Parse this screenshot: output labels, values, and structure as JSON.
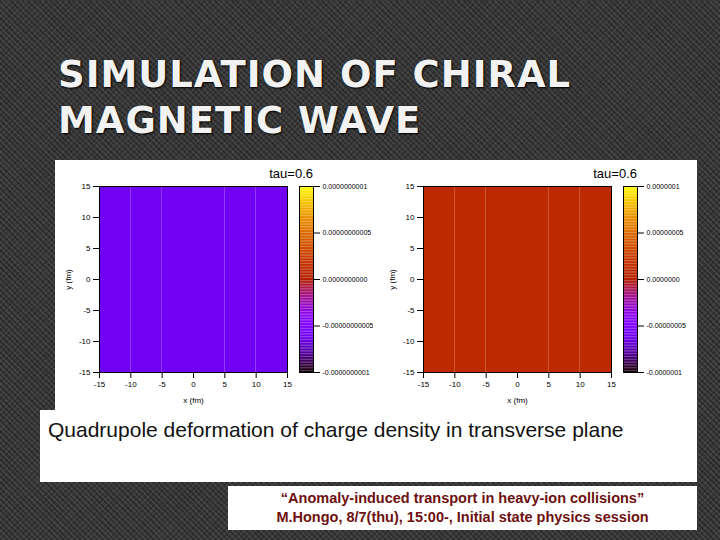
{
  "slide": {
    "title": "SIMULATION OF CHIRAL MAGNETIC WAVE",
    "caption": "Quadrupole deformation of charge density in transverse plane",
    "reference": [
      "“Anomaly-induced transport in heavy-ion collisions”",
      "M.Hongo, 8/7(thu), 15:00-, Initial state physics session"
    ]
  },
  "chart_data": [
    {
      "type": "heatmap",
      "title": "tau=0.6",
      "xlabel": "x (fm)",
      "ylabel": "y (fm)",
      "xlim": [
        -15,
        15
      ],
      "ylim": [
        -15,
        15
      ],
      "xticks": [
        -15,
        -10,
        -5,
        0,
        5,
        10,
        15
      ],
      "yticks": [
        -15,
        -10,
        -5,
        0,
        5,
        10,
        15
      ],
      "x_edges": [
        -15,
        -10,
        -5,
        0,
        5,
        10,
        15
      ],
      "y_edges": [
        -15,
        -10,
        -5,
        0,
        5,
        10,
        15
      ],
      "z": [
        [
          -6e-11,
          -6e-11,
          -6e-11,
          -6e-11,
          -6e-11,
          -6e-11
        ],
        [
          -6e-11,
          -6e-11,
          -6e-11,
          -6e-11,
          -6e-11,
          -6e-11
        ],
        [
          -6e-11,
          -6e-11,
          -6e-11,
          -6e-11,
          -6e-11,
          -6e-11
        ],
        [
          -6e-11,
          -6e-11,
          -6e-11,
          -6e-11,
          -6e-11,
          -6e-11
        ],
        [
          -6e-11,
          -6e-11,
          -6e-11,
          -6e-11,
          -6e-11,
          -6e-11
        ],
        [
          -6e-11,
          -6e-11,
          -6e-11,
          -6e-11,
          -6e-11,
          -6e-11
        ]
      ],
      "zlim": [
        -1e-10,
        1e-10
      ],
      "zticks": [
        {
          "value": 1e-10,
          "label": "0.0000000001"
        },
        {
          "value": 5e-11,
          "label": "0.00000000005"
        },
        {
          "value": 0,
          "label": "0.0000000000"
        },
        {
          "value": -5e-11,
          "label": "-0.00000000005"
        },
        {
          "value": -1e-10,
          "label": "-0.0000000001"
        }
      ]
    },
    {
      "type": "heatmap",
      "title": "tau=0.6",
      "xlabel": "x (fm)",
      "ylabel": "y (fm)",
      "xlim": [
        -15,
        15
      ],
      "ylim": [
        -15,
        15
      ],
      "xticks": [
        -15,
        -10,
        -5,
        0,
        5,
        10,
        15
      ],
      "yticks": [
        -15,
        -10,
        -5,
        0,
        5,
        10,
        15
      ],
      "x_edges": [
        -15,
        -10,
        -5,
        0,
        5,
        10,
        15
      ],
      "y_edges": [
        -15,
        -10,
        -5,
        0,
        5,
        10,
        15
      ],
      "z": [
        [
          1e-08,
          1e-08,
          1e-08,
          1e-08,
          1e-08,
          1e-08
        ],
        [
          1e-08,
          1e-08,
          1e-08,
          1e-08,
          1e-08,
          1e-08
        ],
        [
          1e-08,
          1e-08,
          1e-08,
          1e-08,
          1e-08,
          1e-08
        ],
        [
          1e-08,
          1e-08,
          1e-08,
          1e-08,
          1e-08,
          1e-08
        ],
        [
          1e-08,
          1e-08,
          1e-08,
          1e-08,
          1e-08,
          1e-08
        ],
        [
          1e-08,
          1e-08,
          1e-08,
          1e-08,
          1e-08,
          1e-08
        ]
      ],
      "zlim": [
        -1e-07,
        1e-07
      ],
      "zticks": [
        {
          "value": 1e-07,
          "label": "0.0000001"
        },
        {
          "value": 5e-08,
          "label": "0.00000005"
        },
        {
          "value": 0,
          "label": "0.0000000"
        },
        {
          "value": -5e-08,
          "label": "-0.00000005"
        },
        {
          "value": -1e-07,
          "label": "-0.0000001"
        }
      ]
    }
  ]
}
